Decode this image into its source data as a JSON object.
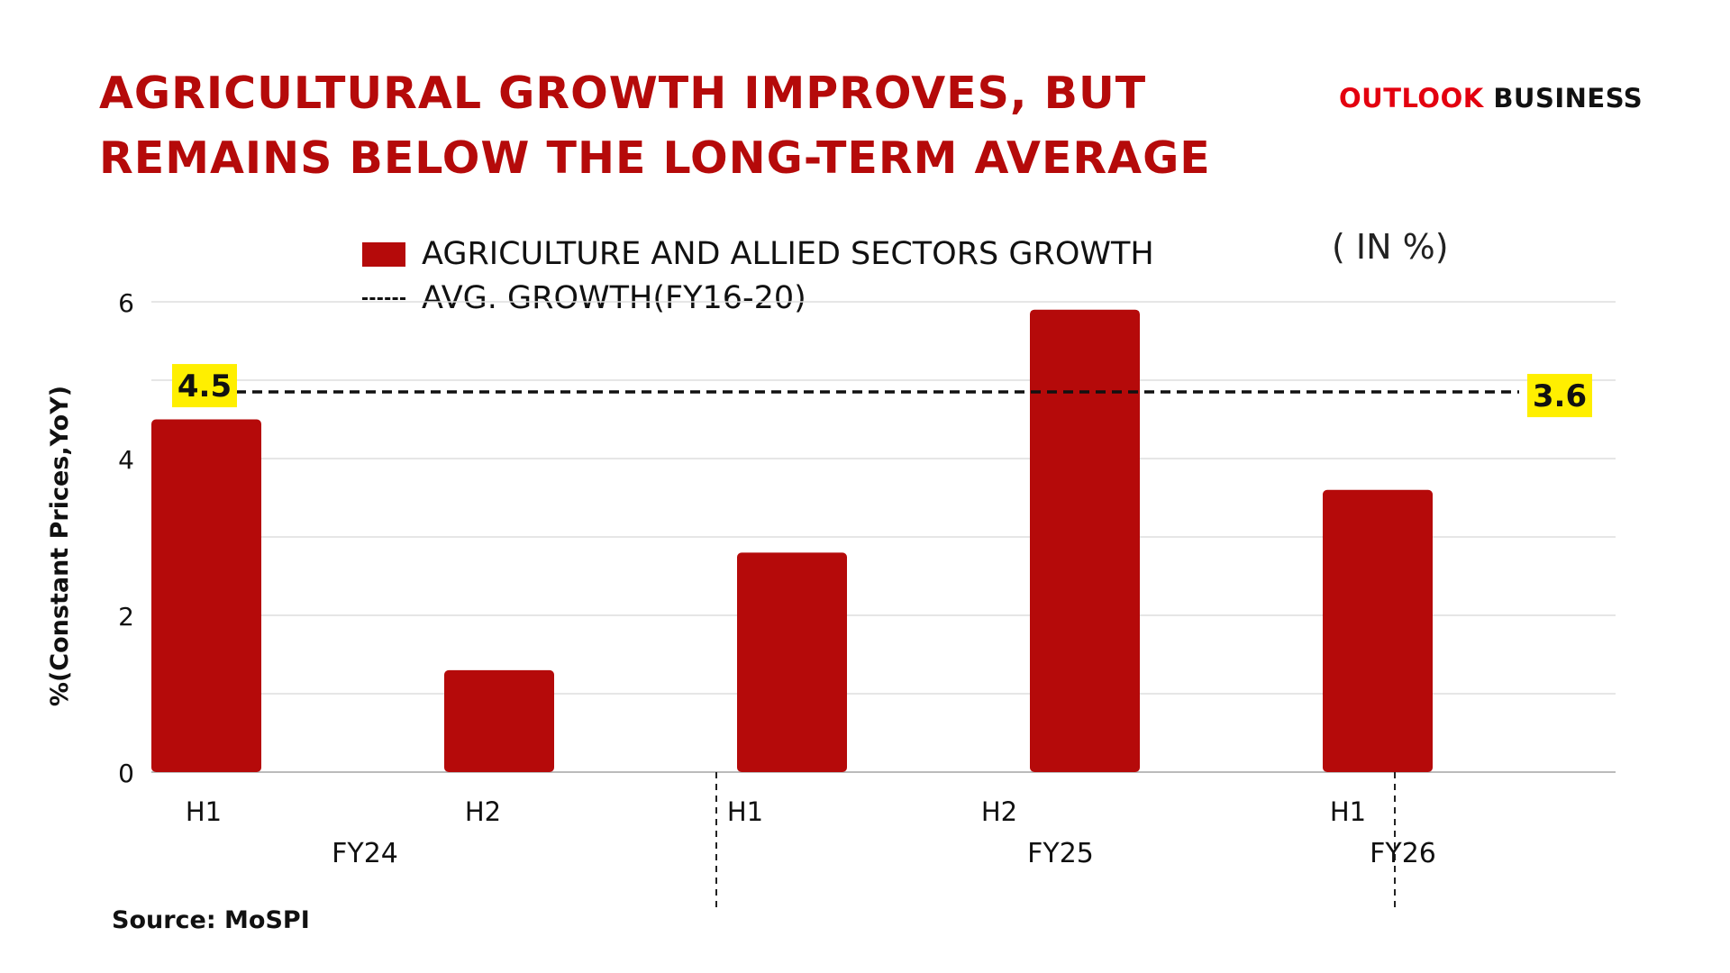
{
  "header": {
    "title_line1": "AGRICULTURAL GROWTH IMPROVES, BUT",
    "title_line2": "REMAINS BELOW THE LONG-TERM AVERAGE",
    "brand_part1": "OUTLOOK",
    "brand_part2": " BUSINESS",
    "unit": "( IN %)"
  },
  "source": "Source: MoSPI",
  "colors": {
    "title": "#b50a0a",
    "bar": "#b50a0a",
    "brand_red": "#e3000f",
    "label_bg": "#ffef00",
    "grid": "#dddddd"
  },
  "chart_data": {
    "type": "bar",
    "title": "AGRICULTURAL GROWTH IMPROVES, BUT REMAINS BELOW THE LONG-TERM AVERAGE",
    "categories": [
      "H1",
      "H2",
      "H1",
      "H2",
      "H1"
    ],
    "groups": [
      {
        "label": "FY24",
        "count": 2
      },
      {
        "label": "FY25",
        "count": 2
      },
      {
        "label": "FY26",
        "count": 1
      }
    ],
    "series": [
      {
        "name": "AGRICULTURE AND ALLIED SECTORS GROWTH",
        "values": [
          4.5,
          1.3,
          2.8,
          5.9,
          3.6
        ]
      }
    ],
    "reference_line": {
      "name": "AVG. GROWTH(FY16-20)",
      "value": 4.85,
      "style": "dashed"
    },
    "data_labels": [
      {
        "index": 0,
        "text": "4.5",
        "position": "left"
      },
      {
        "index": 4,
        "text": "3.6",
        "position": "right"
      }
    ],
    "xlabel": "",
    "ylabel": "%(Constant Prices,YoY)",
    "ylim": [
      0,
      6
    ],
    "yticks": [
      0,
      2,
      4,
      6
    ],
    "grid": true,
    "legend": "top-center"
  }
}
